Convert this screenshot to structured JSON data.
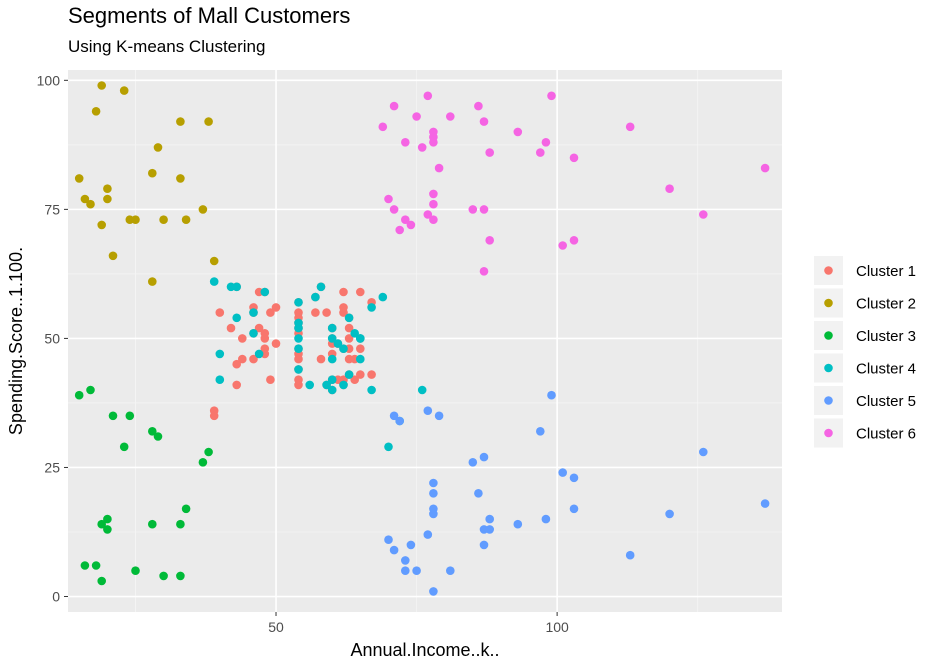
{
  "chart_data": {
    "type": "scatter",
    "title": "Segments of Mall Customers",
    "subtitle": "Using K-means Clustering",
    "xlabel": "Annual.Income..k..",
    "ylabel": "Spending.Score..1.100.",
    "xlim": [
      13,
      140
    ],
    "ylim": [
      -3,
      102
    ],
    "x_ticks": [
      50,
      100
    ],
    "y_ticks": [
      0,
      25,
      50,
      75,
      100
    ],
    "grid": true,
    "legend_position": "right",
    "series": [
      {
        "name": "Cluster 1",
        "color": "#F8766D",
        "points": [
          [
            39,
            35
          ],
          [
            39,
            36
          ],
          [
            40,
            55
          ],
          [
            42,
            52
          ],
          [
            43,
            60
          ],
          [
            43,
            45
          ],
          [
            43,
            41
          ],
          [
            44,
            50
          ],
          [
            44,
            46
          ],
          [
            46,
            51
          ],
          [
            46,
            46
          ],
          [
            46,
            56
          ],
          [
            46,
            55
          ],
          [
            47,
            52
          ],
          [
            47,
            59
          ],
          [
            48,
            51
          ],
          [
            48,
            59
          ],
          [
            48,
            50
          ],
          [
            48,
            48
          ],
          [
            48,
            47
          ],
          [
            49,
            55
          ],
          [
            49,
            42
          ],
          [
            50,
            49
          ],
          [
            50,
            56
          ],
          [
            54,
            47
          ],
          [
            54,
            54
          ],
          [
            54,
            53
          ],
          [
            54,
            48
          ],
          [
            54,
            52
          ],
          [
            54,
            42
          ],
          [
            54,
            51
          ],
          [
            54,
            55
          ],
          [
            54,
            41
          ],
          [
            54,
            44
          ],
          [
            54,
            57
          ],
          [
            54,
            46
          ],
          [
            57,
            58
          ],
          [
            57,
            55
          ],
          [
            58,
            60
          ],
          [
            58,
            46
          ],
          [
            59,
            55
          ],
          [
            59,
            41
          ],
          [
            60,
            49
          ],
          [
            60,
            40
          ],
          [
            60,
            42
          ],
          [
            60,
            52
          ],
          [
            60,
            47
          ],
          [
            60,
            50
          ],
          [
            61,
            42
          ],
          [
            61,
            49
          ],
          [
            62,
            41
          ],
          [
            62,
            48
          ],
          [
            62,
            59
          ],
          [
            62,
            55
          ],
          [
            62,
            56
          ],
          [
            62,
            42
          ],
          [
            63,
            50
          ],
          [
            63,
            46
          ],
          [
            63,
            43
          ],
          [
            63,
            48
          ],
          [
            63,
            52
          ],
          [
            63,
            54
          ],
          [
            64,
            42
          ],
          [
            64,
            46
          ],
          [
            65,
            48
          ],
          [
            65,
            50
          ],
          [
            65,
            43
          ],
          [
            65,
            59
          ],
          [
            67,
            43
          ],
          [
            67,
            57
          ]
        ]
      },
      {
        "name": "Cluster 2",
        "color": "#B79F00",
        "points": [
          [
            15,
            81
          ],
          [
            16,
            77
          ],
          [
            17,
            76
          ],
          [
            18,
            94
          ],
          [
            19,
            72
          ],
          [
            19,
            99
          ],
          [
            20,
            77
          ],
          [
            20,
            79
          ],
          [
            21,
            66
          ],
          [
            23,
            98
          ],
          [
            24,
            73
          ],
          [
            25,
            73
          ],
          [
            28,
            82
          ],
          [
            28,
            61
          ],
          [
            29,
            87
          ],
          [
            30,
            73
          ],
          [
            33,
            92
          ],
          [
            33,
            81
          ],
          [
            34,
            73
          ],
          [
            37,
            75
          ],
          [
            38,
            92
          ],
          [
            39,
            65
          ]
        ]
      },
      {
        "name": "Cluster 3",
        "color": "#00BA38",
        "points": [
          [
            15,
            39
          ],
          [
            16,
            6
          ],
          [
            17,
            40
          ],
          [
            18,
            6
          ],
          [
            19,
            3
          ],
          [
            19,
            14
          ],
          [
            20,
            15
          ],
          [
            20,
            13
          ],
          [
            21,
            35
          ],
          [
            23,
            29
          ],
          [
            24,
            35
          ],
          [
            25,
            5
          ],
          [
            28,
            14
          ],
          [
            28,
            32
          ],
          [
            29,
            31
          ],
          [
            30,
            4
          ],
          [
            33,
            4
          ],
          [
            33,
            14
          ],
          [
            34,
            17
          ],
          [
            37,
            26
          ],
          [
            38,
            28
          ]
        ]
      },
      {
        "name": "Cluster 4",
        "color": "#00BFC4",
        "points": [
          [
            39,
            61
          ],
          [
            40,
            47
          ],
          [
            40,
            42
          ],
          [
            42,
            60
          ],
          [
            43,
            54
          ],
          [
            43,
            60
          ],
          [
            46,
            55
          ],
          [
            46,
            51
          ],
          [
            47,
            47
          ],
          [
            48,
            59
          ],
          [
            54,
            57
          ],
          [
            54,
            53
          ],
          [
            54,
            52
          ],
          [
            54,
            50
          ],
          [
            54,
            44
          ],
          [
            54,
            48
          ],
          [
            56,
            41
          ],
          [
            57,
            58
          ],
          [
            58,
            60
          ],
          [
            59,
            41
          ],
          [
            60,
            50
          ],
          [
            60,
            52
          ],
          [
            60,
            46
          ],
          [
            60,
            42
          ],
          [
            60,
            40
          ],
          [
            61,
            49
          ],
          [
            62,
            41
          ],
          [
            62,
            48
          ],
          [
            63,
            54
          ],
          [
            63,
            43
          ],
          [
            64,
            51
          ],
          [
            65,
            50
          ],
          [
            65,
            46
          ],
          [
            65,
            50
          ],
          [
            67,
            56
          ],
          [
            67,
            40
          ],
          [
            69,
            58
          ],
          [
            70,
            29
          ],
          [
            72,
            34
          ],
          [
            76,
            40
          ]
        ]
      },
      {
        "name": "Cluster 5",
        "color": "#619CFF",
        "points": [
          [
            70,
            11
          ],
          [
            71,
            9
          ],
          [
            71,
            35
          ],
          [
            72,
            34
          ],
          [
            73,
            7
          ],
          [
            73,
            5
          ],
          [
            74,
            10
          ],
          [
            75,
            5
          ],
          [
            77,
            12
          ],
          [
            77,
            36
          ],
          [
            78,
            22
          ],
          [
            78,
            17
          ],
          [
            78,
            20
          ],
          [
            78,
            16
          ],
          [
            78,
            1
          ],
          [
            79,
            35
          ],
          [
            81,
            5
          ],
          [
            85,
            26
          ],
          [
            86,
            20
          ],
          [
            87,
            27
          ],
          [
            87,
            13
          ],
          [
            87,
            10
          ],
          [
            88,
            13
          ],
          [
            88,
            15
          ],
          [
            93,
            14
          ],
          [
            97,
            32
          ],
          [
            98,
            15
          ],
          [
            99,
            39
          ],
          [
            101,
            24
          ],
          [
            103,
            17
          ],
          [
            103,
            23
          ],
          [
            113,
            8
          ],
          [
            120,
            16
          ],
          [
            126,
            28
          ],
          [
            137,
            18
          ]
        ]
      },
      {
        "name": "Cluster 6",
        "color": "#F564E3",
        "points": [
          [
            69,
            91
          ],
          [
            70,
            77
          ],
          [
            71,
            95
          ],
          [
            71,
            75
          ],
          [
            72,
            71
          ],
          [
            73,
            88
          ],
          [
            73,
            73
          ],
          [
            74,
            72
          ],
          [
            75,
            93
          ],
          [
            76,
            87
          ],
          [
            77,
            97
          ],
          [
            77,
            74
          ],
          [
            78,
            90
          ],
          [
            78,
            88
          ],
          [
            78,
            89
          ],
          [
            78,
            78
          ],
          [
            78,
            76
          ],
          [
            78,
            73
          ],
          [
            79,
            83
          ],
          [
            81,
            93
          ],
          [
            85,
            75
          ],
          [
            86,
            95
          ],
          [
            87,
            75
          ],
          [
            87,
            63
          ],
          [
            87,
            92
          ],
          [
            88,
            86
          ],
          [
            88,
            69
          ],
          [
            93,
            90
          ],
          [
            97,
            86
          ],
          [
            98,
            88
          ],
          [
            99,
            97
          ],
          [
            101,
            68
          ],
          [
            103,
            85
          ],
          [
            103,
            69
          ],
          [
            113,
            91
          ],
          [
            120,
            79
          ],
          [
            126,
            74
          ],
          [
            137,
            83
          ]
        ]
      }
    ]
  }
}
